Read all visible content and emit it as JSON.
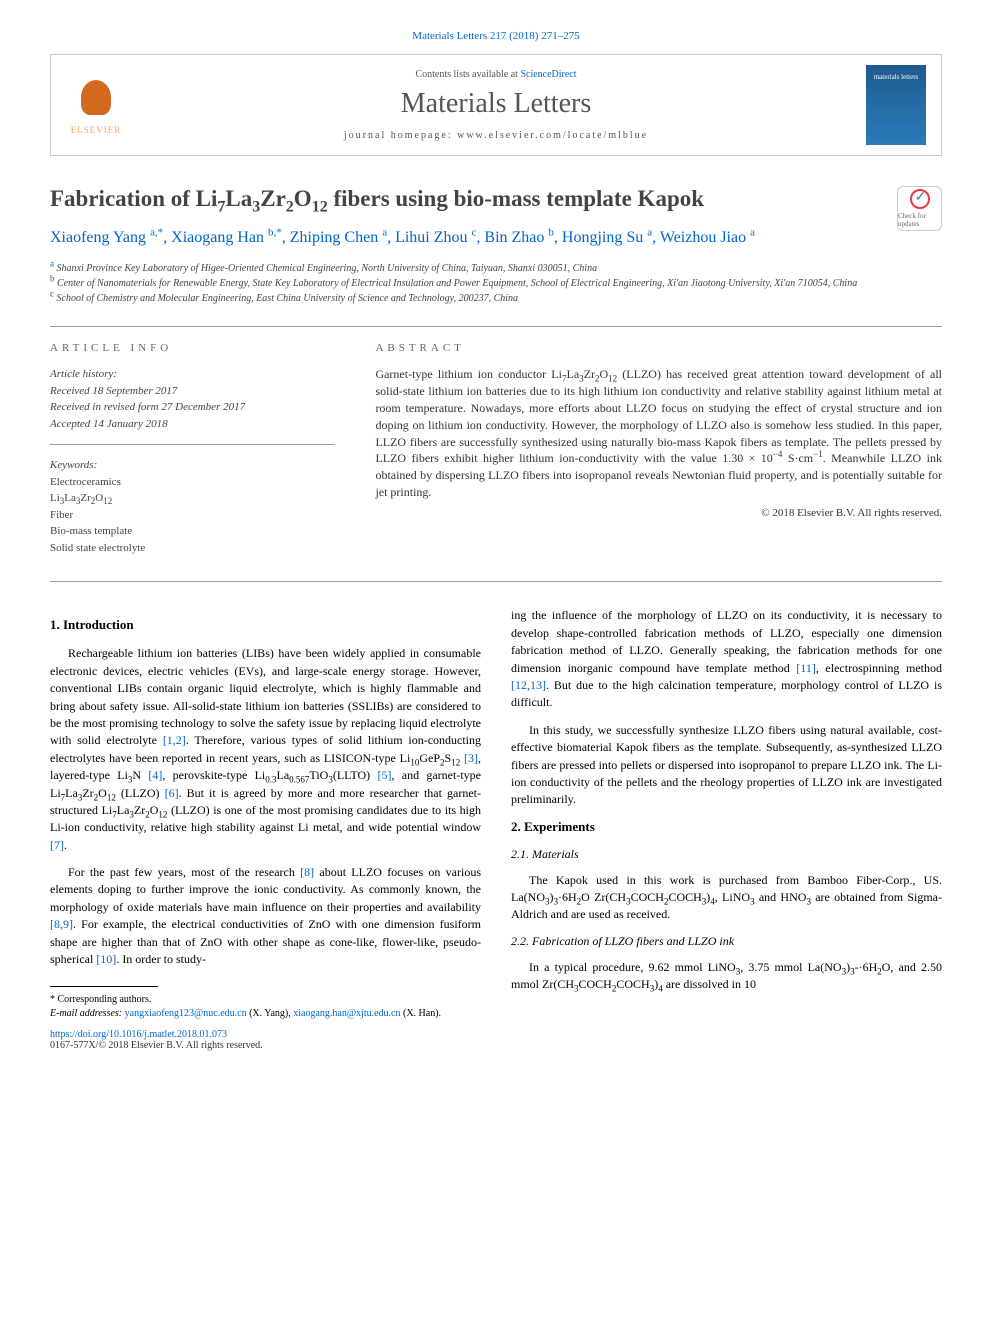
{
  "citation": "Materials Letters 217 (2018) 271–275",
  "header": {
    "contents_prefix": "Contents lists available at ",
    "contents_link": "ScienceDirect",
    "journal_name": "Materials Letters",
    "homepage_label": "journal homepage: ",
    "homepage_url": "www.elsevier.com/locate/mlblue",
    "elsevier": "ELSEVIER",
    "cover_text": "materials letters"
  },
  "crossmark_label": "Check for updates",
  "title_html": "Fabrication of Li<sub>7</sub>La<sub>3</sub>Zr<sub>2</sub>O<sub>12</sub> fibers using bio-mass template Kapok",
  "authors_html": "Xiaofeng Yang <sup>a,*</sup>, Xiaogang Han <sup>b,*</sup>, Zhiping Chen <sup>a</sup>, Lihui Zhou <sup>c</sup>, Bin Zhao <sup>b</sup>, Hongjing Su <sup>a</sup>, Weizhou Jiao <sup>a</sup>",
  "affiliations": [
    "<sup>a</sup> Shanxi Province Key Laboratory of Higee-Oriented Chemical Engineering, North University of China, Taiyuan, Shanxi 030051, China",
    "<sup>b</sup> Center of Nanomaterials for Renewable Energy, State Key Laboratory of Electrical Insulation and Power Equipment, School of Electrical Engineering, Xi'an Jiaotong University, Xi'an 710054, China",
    "<sup>c</sup> School of Chemistry and Molecular Engineering, East China University of Science and Technology, 200237, China"
  ],
  "article_info": {
    "label": "article info",
    "history_label": "Article history:",
    "history": [
      "Received 18 September 2017",
      "Received in revised form 27 December 2017",
      "Accepted 14 January 2018"
    ],
    "keywords_label": "Keywords:",
    "keywords": [
      "Electroceramics",
      "Li<sub>3</sub>La<sub>3</sub>Zr<sub>2</sub>O<sub>12</sub>",
      "Fiber",
      "Bio-mass template",
      "Solid state electrolyte"
    ]
  },
  "abstract": {
    "label": "abstract",
    "text_html": "Garnet-type lithium ion conductor Li<sub>7</sub>La<sub>3</sub>Zr<sub>2</sub>O<sub>12</sub> (LLZO) has received great attention toward development of all solid-state lithium ion batteries due to its high lithium ion conductivity and relative stability against lithium metal at room temperature. Nowadays, more efforts about LLZO focus on studying the effect of crystal structure and ion doping on lithium ion conductivity. However, the morphology of LLZO also is somehow less studied. In this paper, LLZO fibers are successfully synthesized using naturally bio-mass Kapok fibers as template. The pellets pressed by LLZO fibers exhibit higher lithium ion-conductivity with the value 1.30 × 10<sup>−4</sup> S·cm<sup>−1</sup>. Meanwhile LLZO ink obtained by dispersing LLZO fibers into isopropanol reveals Newtonian fluid property, and is potentially suitable for jet printing.",
    "copyright": "© 2018 Elsevier B.V. All rights reserved."
  },
  "body": {
    "intro_heading": "1. Introduction",
    "intro_p1_html": "Rechargeable lithium ion batteries (LIBs) have been widely applied in consumable electronic devices, electric vehicles (EVs), and large-scale energy storage. However, conventional LIBs contain organic liquid electrolyte, which is highly flammable and bring about safety issue. All-solid-state lithium ion batteries (SSLIBs) are considered to be the most promising technology to solve the safety issue by replacing liquid electrolyte with solid electrolyte <span class=\"ref-link\">[1,2]</span>. Therefore, various types of solid lithium ion-conducting electrolytes have been reported in recent years, such as LISICON-type Li<sub>10</sub>GeP<sub>2</sub>S<sub>12</sub> <span class=\"ref-link\">[3]</span>, layered-type Li<sub>3</sub>N <span class=\"ref-link\">[4]</span>, perovskite-type Li<sub>0.3</sub>La<sub>0.567</sub>TiO<sub>3</sub>(LLTO) <span class=\"ref-link\">[5]</span>, and garnet-type Li<sub>7</sub>La<sub>3</sub>Zr<sub>2</sub>O<sub>12</sub> (LLZO) <span class=\"ref-link\">[6]</span>. But it is agreed by more and more researcher that garnet-structured Li<sub>7</sub>La<sub>3</sub>Zr<sub>2</sub>O<sub>12</sub> (LLZO) is one of the most promising candidates due to its high Li-ion conductivity, relative high stability against Li metal, and wide potential window <span class=\"ref-link\">[7]</span>.",
    "intro_p2_html": "For the past few years, most of the research <span class=\"ref-link\">[8]</span> about LLZO focuses on various elements doping to further improve the ionic conductivity. As commonly known, the morphology of oxide materials have main influence on their properties and availability <span class=\"ref-link\">[8,9]</span>. For example, the electrical conductivities of ZnO with one dimension fusiform shape are higher than that of ZnO with other shape as cone-like, flower-like, pseudo-spherical <span class=\"ref-link\">[10]</span>. In order to study-",
    "intro_p2_cont_html": "ing the influence of the morphology of LLZO on its conductivity, it is necessary to develop shape-controlled fabrication methods of LLZO, especially one dimension fabrication method of LLZO. Generally speaking, the fabrication methods for one dimension inorganic compound have template method <span class=\"ref-link\">[11]</span>, electrospinning method <span class=\"ref-link\">[12,13]</span>. But due to the high calcination temperature, morphology control of LLZO is difficult.",
    "intro_p3_html": "In this study, we successfully synthesize LLZO fibers using natural available, cost-effective biomaterial Kapok fibers as the template. Subsequently, as-synthesized LLZO fibers are pressed into pellets or dispersed into isopropanol to prepare LLZO ink. The Li-ion conductivity of the pellets and the rheology properties of LLZO ink are investigated preliminarily.",
    "exp_heading": "2. Experiments",
    "mat_heading": "2.1. Materials",
    "mat_p_html": "The Kapok used in this work is purchased from Bamboo Fiber-Corp., US. La(NO<sub>3</sub>)<sub>3</sub>·6H<sub>2</sub>O Zr(CH<sub>3</sub>COCH<sub>2</sub>COCH<sub>3</sub>)<sub>4</sub>, LiNO<sub>3</sub> and HNO<sub>3</sub> are obtained from Sigma-Aldrich and are used as received.",
    "fab_heading": "2.2. Fabrication of LLZO fibers and LLZO ink",
    "fab_p_html": "In a typical procedure, 9.62 mmol LiNO<sub>3</sub>, 3.75 mmol La(NO<sub>3</sub>)<sub>3</sub>-·6H<sub>2</sub>O, and 2.50 mmol Zr(CH<sub>3</sub>COCH<sub>2</sub>COCH<sub>3</sub>)<sub>4</sub> are dissolved in 10"
  },
  "footnote": {
    "corr": "* Corresponding authors.",
    "email_label": "E-mail addresses: ",
    "email1": "yangxiaofeng123@nuc.edu.cn",
    "email1_name": " (X. Yang), ",
    "email2": "xiaogang.han@xjtu.edu.cn",
    "email2_name": " (X. Han)."
  },
  "doi": "https://doi.org/10.1016/j.matlet.2018.01.073",
  "pub_line": "0167-577X/© 2018 Elsevier B.V. All rights reserved.",
  "colors": {
    "link": "#0066cc",
    "text": "#333333",
    "border": "#999999"
  }
}
